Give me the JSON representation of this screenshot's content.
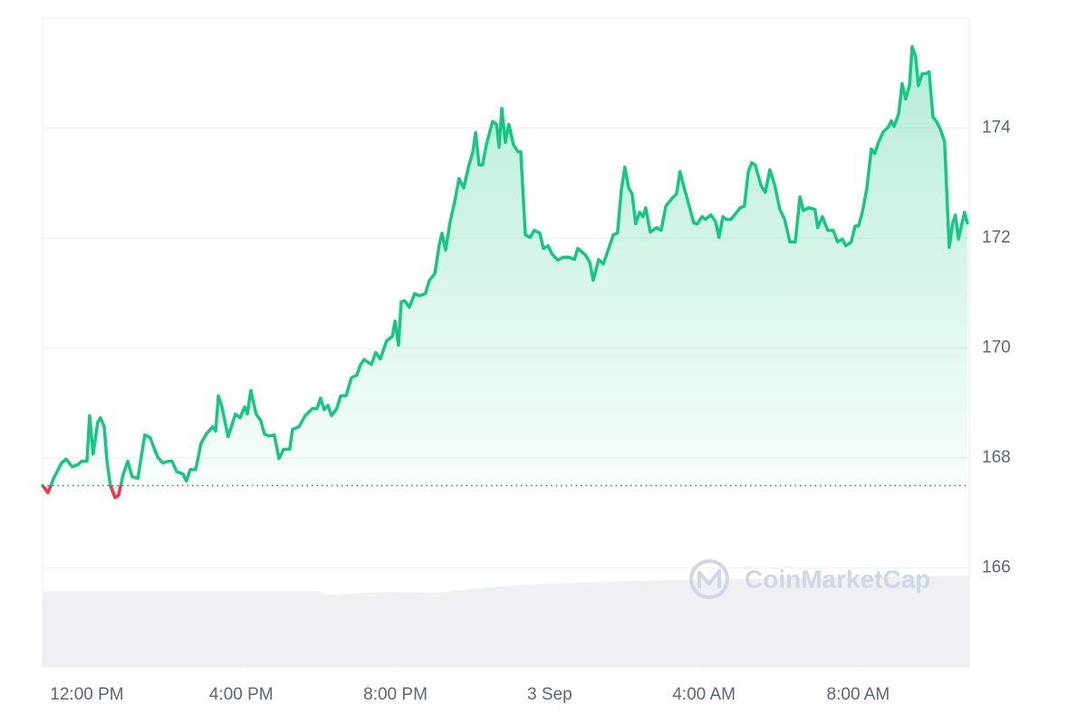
{
  "chart_data": {
    "type": "line",
    "color": "#16c784",
    "negative_color": "#ea3943",
    "reference_value": 167.5,
    "watermark": "CoinMarketCap",
    "xlim": [
      -1.15,
      22.88
    ],
    "xticks": [
      {
        "value": 0,
        "label": "12:00 PM"
      },
      {
        "value": 4,
        "label": "4:00 PM"
      },
      {
        "value": 8,
        "label": "8:00 PM"
      },
      {
        "value": 12,
        "label": "3 Sep"
      },
      {
        "value": 16,
        "label": "4:00 AM"
      },
      {
        "value": 20,
        "label": "8:00 AM"
      }
    ],
    "ylim": [
      164.2,
      176.0
    ],
    "yticks": [
      166,
      168,
      170,
      172,
      174
    ],
    "grid": true,
    "x": [
      -1.15,
      -1.01,
      -0.85,
      -0.66,
      -0.54,
      -0.38,
      -0.23,
      -0.14,
      0,
      0.07,
      0.16,
      0.28,
      0.35,
      0.45,
      0.52,
      0.61,
      0.73,
      0.82,
      0.94,
      1.06,
      1.17,
      1.32,
      1.5,
      1.64,
      1.83,
      1.97,
      2.11,
      2.21,
      2.33,
      2.49,
      2.58,
      2.68,
      2.82,
      2.96,
      3.1,
      3.26,
      3.34,
      3.41,
      3.5,
      3.66,
      3.85,
      3.97,
      4.09,
      4.16,
      4.25,
      4.39,
      4.51,
      4.6,
      4.72,
      4.86,
      4.98,
      5.1,
      5.26,
      5.33,
      5.5,
      5.66,
      5.85,
      5.97,
      6.06,
      6.15,
      6.25,
      6.34,
      6.48,
      6.58,
      6.72,
      6.86,
      7,
      7.09,
      7.19,
      7.38,
      7.49,
      7.61,
      7.77,
      7.92,
      7.99,
      8.08,
      8.15,
      8.24,
      8.36,
      8.5,
      8.62,
      8.78,
      8.88,
      9.02,
      9.14,
      9.21,
      9.3,
      9.42,
      9.54,
      9.65,
      9.77,
      9.91,
      10.01,
      10.08,
      10.17,
      10.26,
      10.36,
      10.52,
      10.62,
      10.69,
      10.76,
      10.85,
      10.94,
      11.06,
      11.18,
      11.25,
      11.37,
      11.49,
      11.6,
      11.74,
      11.84,
      11.96,
      12.07,
      12.21,
      12.35,
      12.5,
      12.64,
      12.73,
      12.92,
      13.04,
      13.13,
      13.27,
      13.39,
      13.53,
      13.65,
      13.76,
      13.86,
      13.95,
      14.05,
      14.14,
      14.23,
      14.33,
      14.42,
      14.49,
      14.61,
      14.77,
      14.89,
      15.01,
      15.17,
      15.29,
      15.38,
      15.48,
      15.62,
      15.74,
      15.83,
      15.95,
      16.04,
      16.18,
      16.3,
      16.39,
      16.49,
      16.58,
      16.7,
      16.82,
      16.94,
      17.05,
      17.15,
      17.24,
      17.33,
      17.48,
      17.59,
      17.71,
      17.83,
      17.97,
      18.09,
      18.23,
      18.37,
      18.49,
      18.58,
      18.72,
      18.88,
      18.95,
      19.07,
      19.21,
      19.35,
      19.47,
      19.59,
      19.68,
      19.82,
      19.92,
      20.01,
      20.1,
      20.22,
      20.34,
      20.43,
      20.53,
      20.65,
      20.79,
      20.86,
      20.93,
      21.05,
      21.14,
      21.23,
      21.33,
      21.4,
      21.49,
      21.56,
      21.66,
      21.75,
      21.84,
      21.94,
      22.03,
      22.13,
      22.24,
      22.36,
      22.45,
      22.52,
      22.6,
      22.69,
      22.76,
      22.83
    ],
    "values": [
      167.5,
      167.37,
      167.65,
      167.91,
      167.98,
      167.84,
      167.88,
      167.94,
      167.94,
      168.77,
      168.07,
      168.65,
      168.73,
      168.57,
      167.94,
      167.5,
      167.28,
      167.32,
      167.7,
      167.94,
      167.66,
      167.63,
      168.42,
      168.37,
      168.02,
      167.91,
      167.94,
      167.94,
      167.75,
      167.71,
      167.58,
      167.79,
      167.79,
      168.27,
      168.44,
      168.57,
      168.49,
      169.13,
      168.93,
      168.39,
      168.8,
      168.73,
      168.93,
      168.8,
      169.23,
      168.8,
      168.68,
      168.44,
      168.4,
      168.42,
      167.99,
      168.16,
      168.16,
      168.52,
      168.57,
      168.77,
      168.9,
      168.9,
      169.09,
      168.88,
      168.96,
      168.77,
      168.9,
      169.13,
      169.13,
      169.46,
      169.51,
      169.69,
      169.79,
      169.7,
      169.92,
      169.8,
      170.13,
      170.21,
      170.49,
      170.05,
      170.84,
      170.86,
      170.74,
      170.99,
      170.95,
      170.99,
      171.23,
      171.35,
      171.89,
      172.09,
      171.78,
      172.3,
      172.67,
      173.08,
      172.91,
      173.33,
      173.57,
      173.92,
      173.33,
      173.33,
      173.7,
      174.12,
      174.07,
      173.65,
      174.36,
      173.74,
      174.07,
      173.7,
      173.57,
      173.57,
      172.06,
      172.01,
      172.14,
      172.09,
      171.81,
      171.86,
      171.7,
      171.6,
      171.65,
      171.65,
      171.61,
      171.81,
      171.7,
      171.56,
      171.23,
      171.61,
      171.53,
      171.81,
      172.06,
      172.09,
      172.88,
      173.29,
      172.91,
      172.8,
      172.26,
      172.47,
      172.39,
      172.55,
      172.11,
      172.19,
      172.14,
      172.58,
      172.72,
      172.8,
      173.21,
      172.93,
      172.58,
      172.27,
      172.26,
      172.39,
      172.34,
      172.42,
      172.3,
      172.01,
      172.39,
      172.34,
      172.34,
      172.44,
      172.55,
      172.58,
      173.21,
      173.37,
      173.33,
      172.96,
      172.83,
      173.24,
      172.98,
      172.52,
      172.35,
      171.93,
      171.93,
      172.75,
      172.5,
      172.55,
      172.52,
      172.19,
      172.39,
      172.14,
      172.14,
      171.93,
      171.98,
      171.86,
      171.93,
      172.22,
      172.22,
      172.45,
      172.88,
      173.62,
      173.54,
      173.75,
      173.93,
      174.03,
      174.13,
      174.03,
      174.26,
      174.81,
      174.53,
      174.77,
      175.48,
      175.3,
      174.77,
      174.99,
      174.99,
      175.02,
      174.2,
      174.12,
      173.98,
      173.75,
      171.83,
      172.27,
      172.42,
      171.98,
      172.26,
      172.47,
      172.27
    ]
  }
}
